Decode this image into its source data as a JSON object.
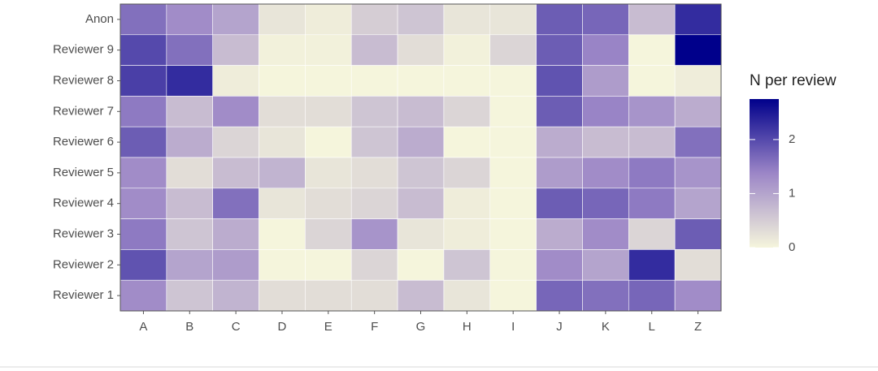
{
  "chart_data": {
    "type": "heatmap",
    "legend_title": "N per review",
    "x": [
      "A",
      "B",
      "C",
      "D",
      "E",
      "F",
      "G",
      "H",
      "I",
      "J",
      "K",
      "L",
      "Z"
    ],
    "y": [
      "Anon",
      "Reviewer 9",
      "Reviewer 8",
      "Reviewer 7",
      "Reviewer 6",
      "Reviewer 5",
      "Reviewer 4",
      "Reviewer 3",
      "Reviewer 2",
      "Reviewer 1"
    ],
    "values": [
      [
        1.6,
        1.3,
        1.0,
        0.2,
        0.1,
        0.5,
        0.6,
        0.2,
        0.2,
        1.8,
        1.7,
        0.7,
        2.3
      ],
      [
        2.0,
        1.6,
        0.7,
        0.05,
        0.05,
        0.7,
        0.3,
        0.05,
        0.4,
        1.8,
        1.4,
        0.0,
        2.75
      ],
      [
        2.1,
        2.3,
        0.1,
        0.0,
        0.0,
        0.0,
        0.0,
        0.0,
        0.0,
        1.9,
        1.1,
        0.0,
        0.1
      ],
      [
        1.5,
        0.7,
        1.3,
        0.3,
        0.3,
        0.6,
        0.7,
        0.4,
        0.0,
        1.8,
        1.4,
        1.2,
        0.9
      ],
      [
        1.8,
        0.9,
        0.4,
        0.2,
        0.0,
        0.6,
        0.9,
        0.0,
        0.0,
        0.9,
        0.7,
        0.7,
        1.6
      ],
      [
        1.3,
        0.3,
        0.7,
        0.8,
        0.2,
        0.3,
        0.6,
        0.4,
        0.0,
        1.1,
        1.3,
        1.5,
        1.2
      ],
      [
        1.3,
        0.7,
        1.6,
        0.2,
        0.3,
        0.4,
        0.7,
        0.1,
        0.0,
        1.8,
        1.7,
        1.5,
        1.0
      ],
      [
        1.5,
        0.6,
        0.9,
        0.0,
        0.4,
        1.2,
        0.2,
        0.1,
        0.0,
        0.9,
        1.3,
        0.4,
        1.8
      ],
      [
        1.9,
        1.0,
        1.1,
        0.0,
        0.0,
        0.4,
        0.0,
        0.6,
        0.0,
        1.3,
        1.0,
        2.3,
        0.3
      ],
      [
        1.3,
        0.6,
        0.8,
        0.3,
        0.3,
        0.3,
        0.7,
        0.2,
        0.0,
        1.7,
        1.6,
        1.7,
        1.3
      ]
    ],
    "colors": [
      "#f5f5dc",
      "#9c86c7",
      "#00008b"
    ],
    "colorlim": [
      0,
      2.75
    ],
    "colorticks": [
      0,
      1,
      2
    ]
  }
}
